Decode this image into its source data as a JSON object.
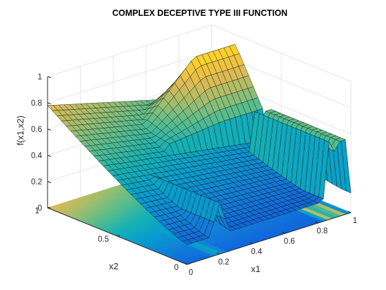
{
  "chart_data": {
    "type": "surface",
    "title": "COMPLEX DECEPTIVE TYPE III FUNCTION",
    "xlabel": "x1",
    "ylabel": "x2",
    "zlabel": "f(x1,x2)",
    "xlim": [
      0,
      1
    ],
    "ylim": [
      0,
      1
    ],
    "zlim": [
      0,
      1
    ],
    "x_ticks": [
      "0",
      "0.2",
      "0.4",
      "0.6",
      "0.8",
      "1"
    ],
    "y_ticks": [
      "0",
      "0.5",
      "1"
    ],
    "z_ticks": [
      "0",
      "0.2",
      "0.4",
      "0.6",
      "0.8",
      "1"
    ],
    "grid": true,
    "contour_projection_at_z": 0,
    "colormap": "parula",
    "surface_features": [
      {
        "name": "x2 ridge",
        "x2": 0.83,
        "z_peak": 0.93,
        "z_base": 0.47
      },
      {
        "name": "x1 ridge",
        "x1": 0.2,
        "z_peak": 0.39,
        "z_base": 0.19
      },
      {
        "name": "x1 ridge",
        "x1": 0.88,
        "z_peak": 0.76,
        "z_base": 0.13
      },
      {
        "name": "x1 ridge",
        "x1": 0.95,
        "z_peak": 0.8,
        "z_base": 0.11
      }
    ],
    "corner_values": [
      {
        "x1": 0,
        "x2": 0,
        "z": 0.15
      },
      {
        "x1": 0,
        "x2": 1,
        "z": 0.78
      },
      {
        "x1": 1,
        "x2": 1,
        "z": 0.45
      }
    ]
  }
}
